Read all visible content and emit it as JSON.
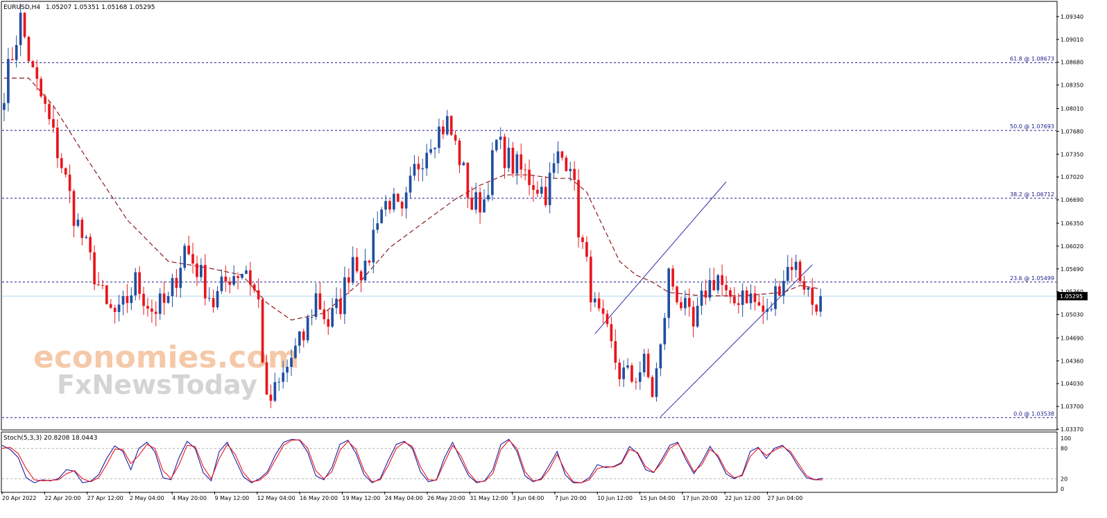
{
  "header": {
    "symbol_label": "EURUSD,H4",
    "ohlc_label": "1.05207 1.05351 1.05168 1.05295"
  },
  "stoch_header": {
    "label": "Stoch(5,3,3) 20.8208 18.0443"
  },
  "watermark": {
    "line1": "economies.com",
    "line2": "FxNewsToday"
  },
  "colors": {
    "background": "#ffffff",
    "bull_candle": "#1f4fa0",
    "bear_candle": "#e8151b",
    "ma_line": "#8b1a1a",
    "fib_line": "#1a1a8c",
    "channel_line": "#2a2aa8",
    "current_price_line": "#a8d8e8",
    "stoch_main": "#1a1aa0",
    "stoch_signal": "#e8151b",
    "price_tag_bg": "#000000",
    "watermark_orange": "#f5c9a8",
    "watermark_grey": "#d4d4d4"
  },
  "chart_data": [
    {
      "type": "candlestick",
      "title": "EURUSD,H4",
      "timeframe": "H4",
      "current_price": 1.05295,
      "current_price_label": "1.05295",
      "ylim": [
        1.0337,
        1.0955
      ],
      "y_ticks": [
        "1.09340",
        "1.09010",
        "1.08680",
        "1.08350",
        "1.08010",
        "1.07680",
        "1.07350",
        "1.07020",
        "1.06690",
        "1.06350",
        "1.06020",
        "1.05690",
        "1.05360",
        "1.05030",
        "1.04690",
        "1.04360",
        "1.04030",
        "1.03700",
        "1.03370"
      ],
      "x_ticks": [
        "20 Apr 2022",
        "22 Apr 20:00",
        "27 Apr 12:00",
        "2 May 04:00",
        "4 May 20:00",
        "9 May 12:00",
        "12 May 04:00",
        "16 May 20:00",
        "19 May 12:00",
        "24 May 04:00",
        "26 May 20:00",
        "31 May 12:00",
        "3 Jun 04:00",
        "7 Jun 20:00",
        "10 Jun 12:00",
        "15 Jun 04:00",
        "17 Jun 20:00",
        "22 Jun 12:00",
        "27 Jun 04:00"
      ],
      "fib_levels": [
        {
          "value": 1.08673,
          "label": "61.8 @ 1.08673"
        },
        {
          "value": 1.07693,
          "label": "50.0 @ 1.07693"
        },
        {
          "value": 1.06712,
          "label": "38.2 @ 1.06712"
        },
        {
          "value": 1.05499,
          "label": "23.6 @ 1.05499"
        },
        {
          "value": 1.03538,
          "label": "0.0 @ 1.03538"
        }
      ],
      "price_path_anchors": [
        [
          0,
          1.083
        ],
        [
          4,
          1.093
        ],
        [
          7,
          1.085
        ],
        [
          10,
          1.08
        ],
        [
          14,
          1.072
        ],
        [
          17,
          1.065
        ],
        [
          21,
          1.058
        ],
        [
          25,
          1.051
        ],
        [
          28,
          1.05
        ],
        [
          32,
          1.055
        ],
        [
          36,
          1.051
        ],
        [
          40,
          1.052
        ],
        [
          44,
          1.06
        ],
        [
          47,
          1.057
        ],
        [
          51,
          1.052
        ],
        [
          55,
          1.056
        ],
        [
          59,
          1.057
        ],
        [
          62,
          1.052
        ],
        [
          64,
          1.037
        ],
        [
          67,
          1.04
        ],
        [
          70,
          1.044
        ],
        [
          73,
          1.047
        ],
        [
          76,
          1.053
        ],
        [
          79,
          1.049
        ],
        [
          82,
          1.052
        ],
        [
          85,
          1.059
        ],
        [
          88,
          1.056
        ],
        [
          91,
          1.065
        ],
        [
          94,
          1.067
        ],
        [
          97,
          1.064
        ],
        [
          100,
          1.071
        ],
        [
          104,
          1.076
        ],
        [
          108,
          1.078
        ],
        [
          111,
          1.073
        ],
        [
          114,
          1.066
        ],
        [
          117,
          1.067
        ],
        [
          120,
          1.075
        ],
        [
          124,
          1.072
        ],
        [
          128,
          1.07
        ],
        [
          132,
          1.068
        ],
        [
          135,
          1.073
        ],
        [
          138,
          1.073
        ],
        [
          140,
          1.063
        ],
        [
          142,
          1.057
        ],
        [
          144,
          1.051
        ],
        [
          147,
          1.047
        ],
        [
          150,
          1.042
        ],
        [
          153,
          1.041
        ],
        [
          156,
          1.043
        ],
        [
          158,
          1.039
        ],
        [
          160,
          1.045
        ],
        [
          162,
          1.056
        ],
        [
          165,
          1.052
        ],
        [
          168,
          1.048
        ],
        [
          171,
          1.054
        ],
        [
          174,
          1.056
        ],
        [
          177,
          1.051
        ],
        [
          180,
          1.054
        ],
        [
          183,
          1.052
        ],
        [
          186,
          1.05
        ],
        [
          189,
          1.055
        ],
        [
          192,
          1.058
        ],
        [
          195,
          1.055
        ],
        [
          197,
          1.052
        ],
        [
          199,
          1.053
        ]
      ],
      "moving_average": {
        "style": "dashed",
        "anchors": [
          [
            0,
            1.0845
          ],
          [
            6,
            1.0845
          ],
          [
            12,
            1.0805
          ],
          [
            20,
            1.073
          ],
          [
            30,
            1.064
          ],
          [
            40,
            1.058
          ],
          [
            50,
            1.057
          ],
          [
            58,
            1.056
          ],
          [
            64,
            1.052
          ],
          [
            70,
            1.0495
          ],
          [
            78,
            1.0505
          ],
          [
            86,
            1.0545
          ],
          [
            94,
            1.06
          ],
          [
            102,
            1.0635
          ],
          [
            110,
            1.067
          ],
          [
            116,
            1.069
          ],
          [
            122,
            1.0705
          ],
          [
            128,
            1.0705
          ],
          [
            134,
            1.07
          ],
          [
            138,
            1.07
          ],
          [
            142,
            1.068
          ],
          [
            146,
            1.063
          ],
          [
            150,
            1.058
          ],
          [
            154,
            1.056
          ],
          [
            158,
            1.055
          ],
          [
            162,
            1.0535
          ],
          [
            170,
            1.053
          ],
          [
            180,
            1.053
          ],
          [
            190,
            1.0535
          ],
          [
            194,
            1.0545
          ],
          [
            199,
            1.054
          ]
        ]
      },
      "channel_lines": [
        {
          "from": [
            144,
            1.0475
          ],
          "to": [
            176,
            1.0695
          ]
        },
        {
          "from": [
            160,
            1.0355
          ],
          "to": [
            197,
            1.0575
          ]
        }
      ]
    },
    {
      "type": "line",
      "title": "Stoch(5,3,3) 20.8208 18.0443",
      "ylim": [
        0,
        100
      ],
      "y_ticks": [
        "100",
        "80",
        "20",
        "0"
      ],
      "levels": [
        80,
        20
      ],
      "series": [
        {
          "style": "main",
          "values": [
            86,
            78,
            62,
            22,
            12,
            18,
            16,
            20,
            38,
            35,
            12,
            15,
            28,
            60,
            85,
            74,
            38,
            80,
            92,
            73,
            22,
            18,
            62,
            94,
            80,
            32,
            16,
            74,
            92,
            58,
            24,
            12,
            20,
            34,
            68,
            92,
            98,
            96,
            72,
            26,
            18,
            42,
            88,
            96,
            70,
            28,
            12,
            20,
            56,
            88,
            94,
            80,
            34,
            14,
            18,
            62,
            92,
            58,
            26,
            12,
            16,
            38,
            88,
            98,
            74,
            26,
            14,
            20,
            46,
            74,
            28,
            12,
            12,
            22,
            48,
            42,
            44,
            52,
            84,
            70,
            38,
            32,
            58,
            86,
            92,
            58,
            30,
            54,
            84,
            62,
            30,
            20,
            28,
            74,
            82,
            60,
            80,
            86,
            70,
            44,
            22,
            18,
            21
          ]
        },
        {
          "style": "signal",
          "values": [
            80,
            82,
            70,
            40,
            18,
            16,
            17,
            18,
            30,
            36,
            20,
            14,
            22,
            48,
            78,
            78,
            50,
            66,
            88,
            80,
            36,
            20,
            48,
            86,
            84,
            44,
            20,
            60,
            88,
            68,
            32,
            14,
            17,
            30,
            58,
            86,
            96,
            97,
            80,
            36,
            20,
            34,
            76,
            94,
            78,
            36,
            14,
            18,
            46,
            80,
            92,
            84,
            44,
            18,
            17,
            52,
            86,
            66,
            32,
            14,
            15,
            30,
            78,
            96,
            80,
            34,
            16,
            18,
            38,
            68,
            36,
            14,
            12,
            18,
            40,
            44,
            43,
            50,
            78,
            72,
            44,
            33,
            52,
            80,
            90,
            64,
            34,
            48,
            78,
            66,
            36,
            22,
            26,
            64,
            80,
            66,
            76,
            84,
            74,
            50,
            26,
            18,
            18
          ]
        }
      ]
    }
  ]
}
